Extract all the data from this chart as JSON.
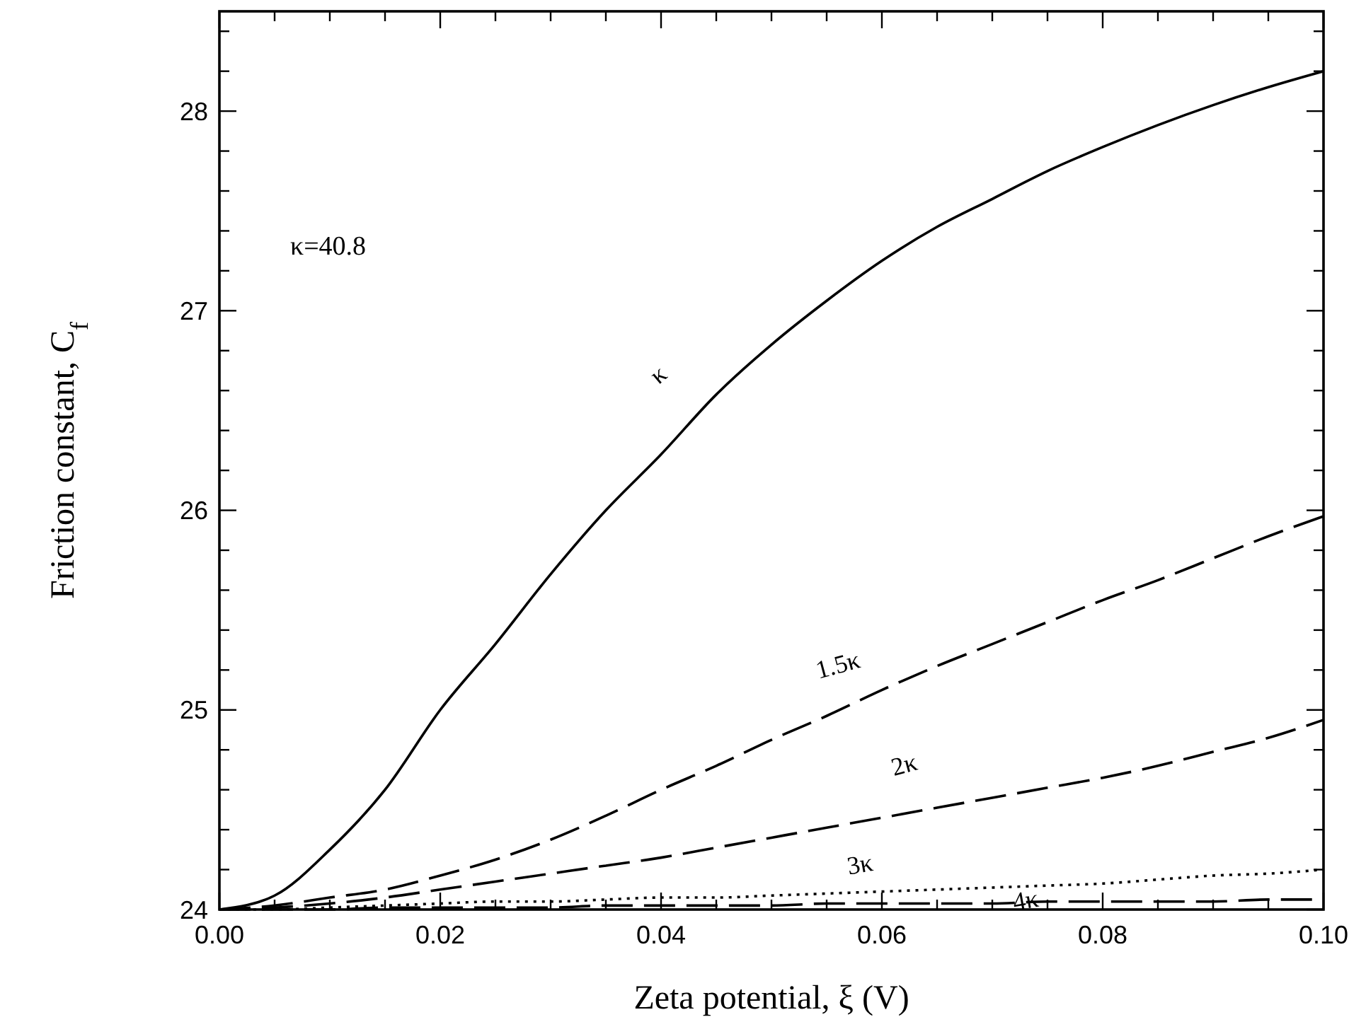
{
  "chart_data": {
    "type": "line",
    "xlabel": "Zeta potential, ξ (V)",
    "ylabel": "Friction constant, C$_{f}$",
    "xlim": [
      0,
      0.1
    ],
    "ylim": [
      24,
      28.5
    ],
    "xticks": [
      {
        "value": 0,
        "label": "0.00"
      },
      {
        "value": 0.005,
        "label": null
      },
      {
        "value": 0.01,
        "label": null
      },
      {
        "value": 0.015,
        "label": null
      },
      {
        "value": 0.02,
        "label": "0.02"
      },
      {
        "value": 0.025,
        "label": null
      },
      {
        "value": 0.03,
        "label": null
      },
      {
        "value": 0.035,
        "label": null
      },
      {
        "value": 0.04,
        "label": "0.04"
      },
      {
        "value": 0.045,
        "label": null
      },
      {
        "value": 0.05,
        "label": null
      },
      {
        "value": 0.055,
        "label": null
      },
      {
        "value": 0.06,
        "label": "0.06"
      },
      {
        "value": 0.065,
        "label": null
      },
      {
        "value": 0.07,
        "label": null
      },
      {
        "value": 0.075,
        "label": null
      },
      {
        "value": 0.08,
        "label": "0.08"
      },
      {
        "value": 0.085,
        "label": null
      },
      {
        "value": 0.09,
        "label": null
      },
      {
        "value": 0.095,
        "label": null
      },
      {
        "value": 0.1,
        "label": "0.10"
      }
    ],
    "yticks": [
      24,
      {
        "value": 24.2,
        "label": null
      },
      {
        "value": 24.4,
        "label": null
      },
      {
        "value": 24.6,
        "label": null
      },
      {
        "value": 24.8,
        "label": null
      },
      25,
      {
        "value": 25.2,
        "label": null
      },
      {
        "value": 25.4,
        "label": null
      },
      {
        "value": 25.6,
        "label": null
      },
      {
        "value": 25.8,
        "label": null
      },
      26,
      {
        "value": 26.2,
        "label": null
      },
      {
        "value": 26.4,
        "label": null
      },
      {
        "value": 26.6,
        "label": null
      },
      {
        "value": 26.8,
        "label": null
      },
      27,
      {
        "value": 27.2,
        "label": null
      },
      {
        "value": 27.4,
        "label": null
      },
      {
        "value": 27.6,
        "label": null
      },
      {
        "value": 27.8,
        "label": null
      },
      28,
      {
        "value": 28.2,
        "label": null
      },
      {
        "value": 28.4,
        "label": null
      }
    ],
    "grid": false,
    "x": [
      0,
      0.005,
      0.01,
      0.015,
      0.02,
      0.025,
      0.03,
      0.035,
      0.04,
      0.045,
      0.05,
      0.055,
      0.06,
      0.065,
      0.07,
      0.075,
      0.08,
      0.085,
      0.09,
      0.095,
      0.1
    ],
    "series": [
      {
        "name": "κ",
        "color": "#000000",
        "line_style": "solid",
        "values": [
          24,
          24.07,
          24.3,
          24.6,
          25.0,
          25.33,
          25.68,
          26.0,
          26.28,
          26.58,
          26.83,
          27.05,
          27.25,
          27.42,
          27.56,
          27.7,
          27.82,
          27.93,
          28.03,
          28.12,
          28.2
        ]
      },
      {
        "name": "1.5κ",
        "color": "#000000",
        "line_style": "dashed",
        "values": [
          24,
          24.02,
          24.06,
          24.1,
          24.17,
          24.25,
          24.35,
          24.47,
          24.6,
          24.72,
          24.85,
          24.97,
          25.1,
          25.22,
          25.33,
          25.44,
          25.55,
          25.65,
          25.76,
          25.87,
          25.97
        ]
      },
      {
        "name": "2κ",
        "color": "#000000",
        "line_style": "dashed",
        "values": [
          24,
          24.01,
          24.03,
          24.06,
          24.1,
          24.14,
          24.18,
          24.22,
          24.26,
          24.31,
          24.36,
          24.41,
          24.46,
          24.51,
          24.56,
          24.61,
          24.66,
          24.72,
          24.79,
          24.86,
          24.95
        ]
      },
      {
        "name": "3κ",
        "color": "#000000",
        "line_style": "dotted",
        "values": [
          24,
          24.0,
          24.01,
          24.02,
          24.03,
          24.04,
          24.04,
          24.05,
          24.06,
          24.06,
          24.07,
          24.08,
          24.09,
          24.1,
          24.11,
          24.12,
          24.13,
          24.15,
          24.17,
          24.18,
          24.2
        ]
      },
      {
        "name": "4κ",
        "color": "#000000",
        "line_style": "dashed",
        "values": [
          24,
          24.0,
          24.0,
          24.01,
          24.01,
          24.01,
          24.01,
          24.02,
          24.02,
          24.02,
          24.02,
          24.03,
          24.03,
          24.03,
          24.03,
          24.04,
          24.04,
          24.04,
          24.04,
          24.05,
          24.05
        ]
      }
    ],
    "annotations": [
      "κ=40.8"
    ]
  }
}
